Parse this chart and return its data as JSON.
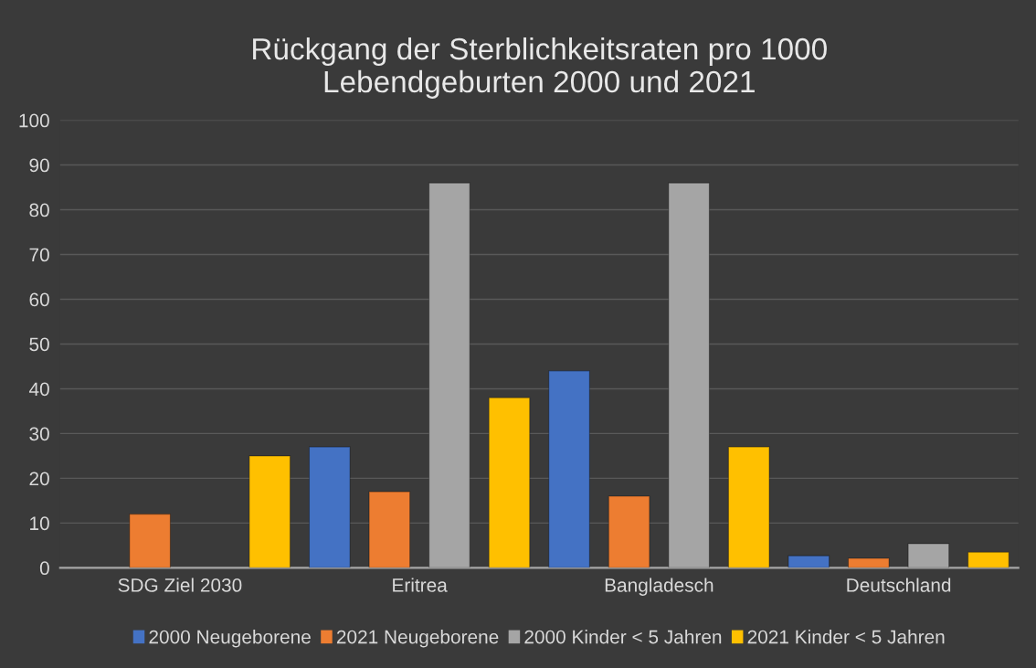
{
  "chart_data": {
    "type": "bar",
    "title": "Rückgang der Sterblichkeitsraten pro 1000\nLebendgeburten 2000 und 2021",
    "categories": [
      "SDG Ziel 2030",
      "Eritrea",
      "Bangladesch",
      "Deutschland"
    ],
    "series": [
      {
        "name": "2000 Neugeborene",
        "color": "#4472c4",
        "values": [
          null,
          27,
          44,
          2.7
        ]
      },
      {
        "name": "2021 Neugeborene",
        "color": "#ed7d31",
        "values": [
          12,
          17,
          16,
          2.1
        ]
      },
      {
        "name": "2000 Kinder < 5 Jahren",
        "color": "#a5a5a5",
        "values": [
          null,
          86,
          86,
          5.4
        ]
      },
      {
        "name": "2021 Kinder < 5 Jahren",
        "color": "#ffc000",
        "values": [
          25,
          38,
          27,
          3.5
        ]
      }
    ],
    "ylim": [
      0,
      100
    ],
    "yticks": [
      0,
      10,
      20,
      30,
      40,
      50,
      60,
      70,
      80,
      90,
      100
    ],
    "grid": "y",
    "legend": "bottom"
  }
}
